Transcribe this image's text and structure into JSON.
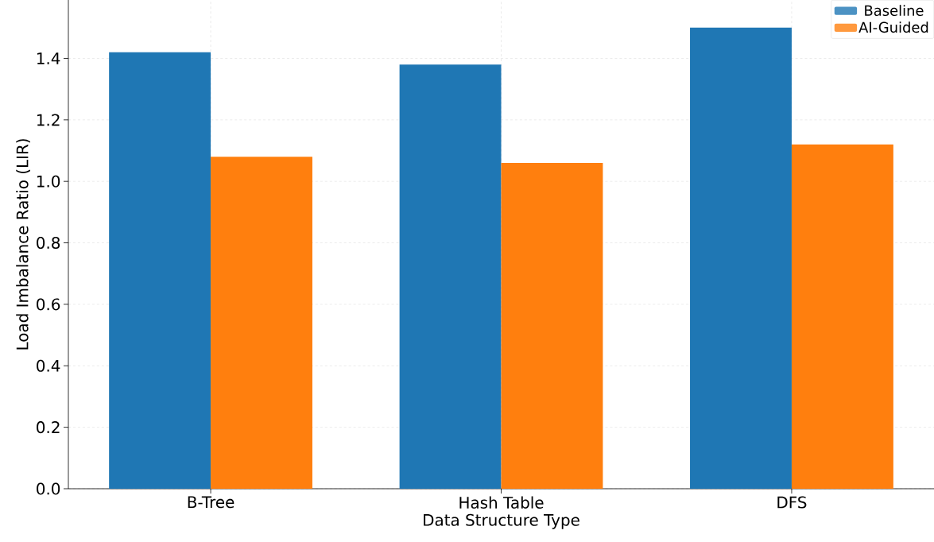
{
  "chart_data": {
    "type": "bar",
    "xlabel": "Data Structure Type",
    "ylabel": "Load Imbalance Ratio (LIR)",
    "categories": [
      "B-Tree",
      "Hash Table",
      "DFS"
    ],
    "series": [
      {
        "name": "Baseline",
        "color": "#1f77b4",
        "values": [
          1.42,
          1.38,
          1.5
        ]
      },
      {
        "name": "AI-Guided",
        "color": "#ff7f0e",
        "values": [
          1.08,
          1.06,
          1.12
        ]
      }
    ],
    "ylim": [
      0,
      1.59
    ],
    "yticks": [
      {
        "value": 0,
        "label": "0.0"
      },
      0.2,
      0.4,
      0.6,
      0.8,
      {
        "value": 1,
        "label": "1.0"
      },
      1.2,
      1.4
    ],
    "grid": true,
    "legend": "top right"
  }
}
